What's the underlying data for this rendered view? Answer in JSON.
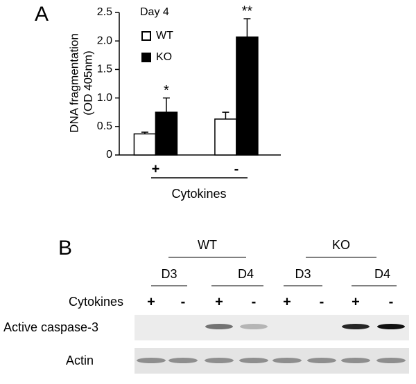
{
  "panel_labels": [
    "A",
    "B"
  ],
  "chart_data": {
    "type": "bar",
    "inset_label": "Day 4",
    "ylabel": [
      "DNA fragmentation",
      "(OD 405nm)"
    ],
    "xlabel": "Cytokines",
    "categories": [
      "+",
      "-"
    ],
    "series": [
      {
        "name": "WT",
        "color": "#ffffff",
        "edgecolor": "#000000",
        "values": [
          0.37,
          0.63
        ],
        "errors": [
          0.03,
          0.12
        ]
      },
      {
        "name": "KO",
        "color": "#000000",
        "edgecolor": "#000000",
        "values": [
          0.75,
          2.07
        ],
        "errors": [
          0.25,
          0.32
        ]
      }
    ],
    "annotations": [
      {
        "text": "*",
        "series": "KO",
        "category": "+"
      },
      {
        "text": "**",
        "series": "KO",
        "category": "-"
      }
    ],
    "ylim": [
      0,
      2.5
    ],
    "yticks": [
      0,
      0.5,
      {
        "value": 1,
        "label": "1.0"
      },
      1.5,
      {
        "value": 2,
        "label": "2.0"
      },
      2.5
    ],
    "legend": "upper left"
  },
  "blot": {
    "groups": [
      {
        "label": "WT",
        "days": [
          "D3",
          "D4"
        ]
      },
      {
        "label": "KO",
        "days": [
          "D3",
          "D4"
        ]
      }
    ],
    "treatment_label": "Cytokines",
    "treatments": [
      "+",
      "-",
      "+",
      "-",
      "+",
      "-",
      "+",
      "-"
    ],
    "rows": [
      "Active caspase-3",
      "Actin"
    ]
  }
}
